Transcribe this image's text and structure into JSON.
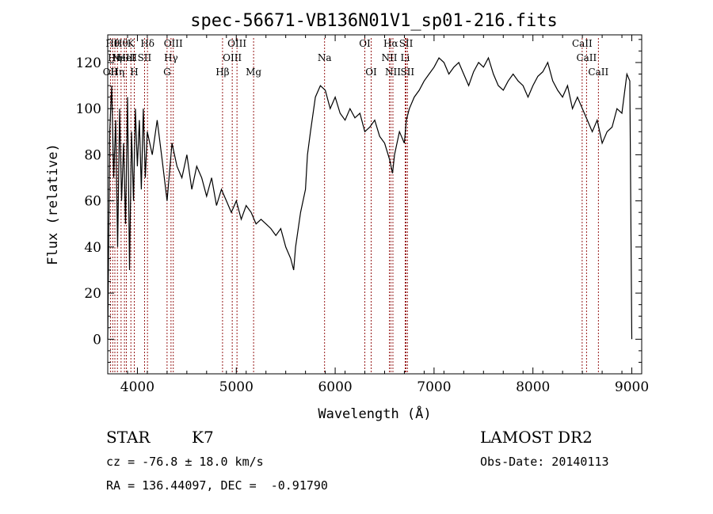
{
  "chart_data": {
    "type": "line",
    "title": "spec-56671-VB136N01V1_sp01-216.fits",
    "xlabel": "Wavelength (Å)",
    "ylabel": "Flux (relative)",
    "xlim": [
      3700,
      9100
    ],
    "ylim": [
      -15,
      132
    ],
    "xticks": [
      4000,
      5000,
      6000,
      7000,
      8000,
      9000
    ],
    "yticks": [
      0,
      20,
      40,
      60,
      80,
      100,
      120
    ],
    "grid": false,
    "line_color": "#000000",
    "marker_color": "#8b0000",
    "series": [
      {
        "x": [
          3700,
          3720,
          3740,
          3760,
          3780,
          3800,
          3820,
          3840,
          3860,
          3880,
          3900,
          3920,
          3940,
          3960,
          3980,
          4000,
          4020,
          4040,
          4060,
          4080,
          4100,
          4150,
          4200,
          4250,
          4300,
          4350,
          4400,
          4450,
          4500,
          4550,
          4600,
          4650,
          4700,
          4750,
          4800,
          4850,
          4900,
          4950,
          5000,
          5050,
          5100,
          5150,
          5200,
          5250,
          5300,
          5350,
          5400,
          5450,
          5500,
          5550,
          5580,
          5600,
          5650,
          5700,
          5720,
          5750,
          5800,
          5850,
          5900,
          5950,
          6000,
          6050,
          6100,
          6150,
          6200,
          6250,
          6300,
          6350,
          6400,
          6450,
          6500,
          6550,
          6580,
          6600,
          6650,
          6700,
          6720,
          6750,
          6800,
          6850,
          6900,
          6950,
          7000,
          7050,
          7100,
          7150,
          7200,
          7250,
          7300,
          7350,
          7400,
          7450,
          7500,
          7550,
          7600,
          7650,
          7700,
          7750,
          7800,
          7850,
          7900,
          7950,
          8000,
          8050,
          8100,
          8150,
          8200,
          8250,
          8300,
          8350,
          8400,
          8450,
          8500,
          8550,
          8600,
          8650,
          8700,
          8750,
          8800,
          8850,
          8900,
          8950,
          8980,
          9000
        ],
        "y": [
          0,
          90,
          110,
          70,
          95,
          40,
          100,
          60,
          85,
          50,
          105,
          30,
          90,
          60,
          100,
          75,
          95,
          65,
          100,
          70,
          90,
          80,
          95,
          78,
          60,
          85,
          75,
          70,
          80,
          65,
          75,
          70,
          62,
          70,
          58,
          65,
          60,
          55,
          60,
          52,
          58,
          55,
          50,
          52,
          50,
          48,
          45,
          48,
          40,
          35,
          30,
          40,
          55,
          65,
          80,
          90,
          105,
          110,
          108,
          100,
          105,
          98,
          95,
          100,
          96,
          98,
          90,
          92,
          95,
          88,
          85,
          78,
          72,
          80,
          90,
          85,
          95,
          100,
          105,
          108,
          112,
          115,
          118,
          122,
          120,
          115,
          118,
          120,
          115,
          110,
          116,
          120,
          118,
          122,
          115,
          110,
          108,
          112,
          115,
          112,
          110,
          105,
          110,
          114,
          116,
          120,
          112,
          108,
          105,
          110,
          100,
          105,
          100,
          95,
          90,
          95,
          85,
          90,
          92,
          100,
          98,
          115,
          112,
          0
        ]
      }
    ],
    "line_labels": [
      {
        "wl": 3727,
        "row": 3,
        "text": "OII"
      },
      {
        "wl": 3750,
        "row": 1,
        "text": "Hθ"
      },
      {
        "wl": 3772,
        "row": 2,
        "text": "Hη"
      },
      {
        "wl": 3798,
        "row": 3,
        "text": "Hη"
      },
      {
        "wl": 3835,
        "row": 1,
        "text": "Hθ"
      },
      {
        "wl": 3869,
        "row": 2,
        "text": "NeIII"
      },
      {
        "wl": 3889,
        "row": 2,
        "text": "HeI"
      },
      {
        "wl": 3934,
        "row": 1,
        "text": "K"
      },
      {
        "wl": 3968,
        "row": 3,
        "text": "H"
      },
      {
        "wl": 4072,
        "row": 2,
        "text": "SII"
      },
      {
        "wl": 4102,
        "row": 1,
        "text": "Hδ"
      },
      {
        "wl": 4300,
        "row": 3,
        "text": "G"
      },
      {
        "wl": 4340,
        "row": 2,
        "text": "Hγ"
      },
      {
        "wl": 4363,
        "row": 1,
        "text": "OIII"
      },
      {
        "wl": 4861,
        "row": 3,
        "text": "Hβ"
      },
      {
        "wl": 4959,
        "row": 2,
        "text": "OIII"
      },
      {
        "wl": 5007,
        "row": 1,
        "text": "OIII"
      },
      {
        "wl": 5175,
        "row": 3,
        "text": "Mg"
      },
      {
        "wl": 5893,
        "row": 2,
        "text": "Na"
      },
      {
        "wl": 6300,
        "row": 1,
        "text": "OI"
      },
      {
        "wl": 6364,
        "row": 3,
        "text": "OI"
      },
      {
        "wl": 6548,
        "row": 2,
        "text": "NII"
      },
      {
        "wl": 6563,
        "row": 1,
        "text": "Hα"
      },
      {
        "wl": 6584,
        "row": 3,
        "text": "NII"
      },
      {
        "wl": 6708,
        "row": 2,
        "text": "Li"
      },
      {
        "wl": 6717,
        "row": 1,
        "text": "SII"
      },
      {
        "wl": 6731,
        "row": 3,
        "text": "SII"
      },
      {
        "wl": 8498,
        "row": 1,
        "text": "CaII"
      },
      {
        "wl": 8542,
        "row": 2,
        "text": "CaII"
      },
      {
        "wl": 8662,
        "row": 3,
        "text": "CaII"
      }
    ]
  },
  "info": {
    "object_class": "STAR",
    "subclass": "K7",
    "survey": "LAMOST DR2",
    "redshift": "cz = -76.8 ± 18.0 km/s",
    "obs_date": "Obs-Date: 20140113",
    "coords": "RA = 136.44097, DEC =  -0.91790"
  }
}
